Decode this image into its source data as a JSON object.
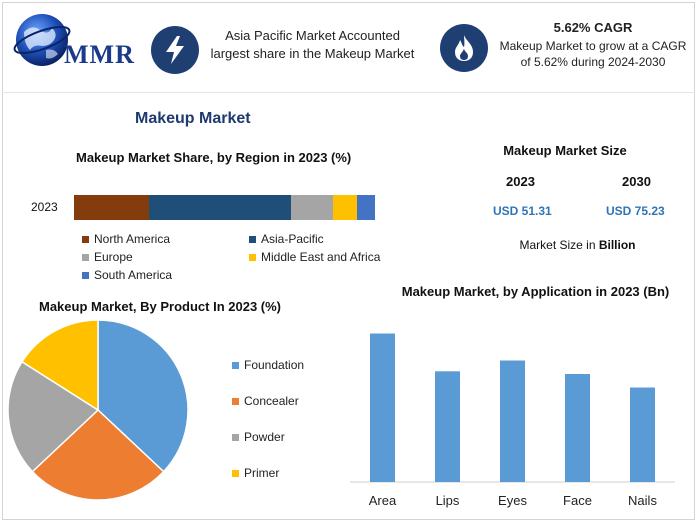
{
  "header": {
    "logo_text": "MMR",
    "logo_icon": "globe-icon",
    "highlight1_icon": "lightning-icon",
    "highlight1_text": "Asia Pacific Market Accounted largest share in the Makeup Market",
    "highlight2_icon": "flame-icon",
    "cagr_title": "5.62% CAGR",
    "cagr_text": "Makeup Market to grow at a CAGR of 5.62% during 2024-2030"
  },
  "main_title": "Makeup Market",
  "market_size": {
    "title": "Makeup Market Size",
    "year1": "2023",
    "year2": "2030",
    "value1": "USD 51.31",
    "value2": "USD 75.23",
    "unit_prefix": "Market Size in ",
    "unit_bold": "Billion"
  },
  "colors": {
    "accent_navy": "#1f3f73",
    "value_blue": "#2e75b6"
  },
  "chart_data": [
    {
      "type": "bar",
      "orientation": "horizontal-stacked",
      "title": "Makeup Market Share, by Region in 2023 (%)",
      "categories": [
        "2023"
      ],
      "series": [
        {
          "name": "North America",
          "values": [
            25
          ],
          "color": "#843c0c"
        },
        {
          "name": "Asia-Pacific",
          "values": [
            47
          ],
          "color": "#1f4e79"
        },
        {
          "name": "Europe",
          "values": [
            14
          ],
          "color": "#a5a5a5"
        },
        {
          "name": "Middle East and Africa",
          "values": [
            8
          ],
          "color": "#ffc000"
        },
        {
          "name": "South America",
          "values": [
            6
          ],
          "color": "#4472c4"
        }
      ],
      "legend_position": "bottom"
    },
    {
      "type": "pie",
      "title": "Makeup Market, By Product In 2023 (%)",
      "slices": [
        {
          "name": "Foundation",
          "value": 37,
          "color": "#5b9bd5"
        },
        {
          "name": "Concealer",
          "value": 26,
          "color": "#ed7d31"
        },
        {
          "name": "Powder",
          "value": 21,
          "color": "#a5a5a5"
        },
        {
          "name": "Primer",
          "value": 16,
          "color": "#ffc000"
        }
      ],
      "legend_position": "right"
    },
    {
      "type": "bar",
      "title": "Makeup Market, by Application in 2023 (Bn)",
      "categories": [
        "Area",
        "Lips",
        "Eyes",
        "Face",
        "Nails"
      ],
      "values": [
        16.5,
        12.3,
        13.5,
        12.0,
        10.5
      ],
      "color": "#5b9bd5",
      "ylim": [
        0,
        18
      ],
      "grid": false
    }
  ]
}
